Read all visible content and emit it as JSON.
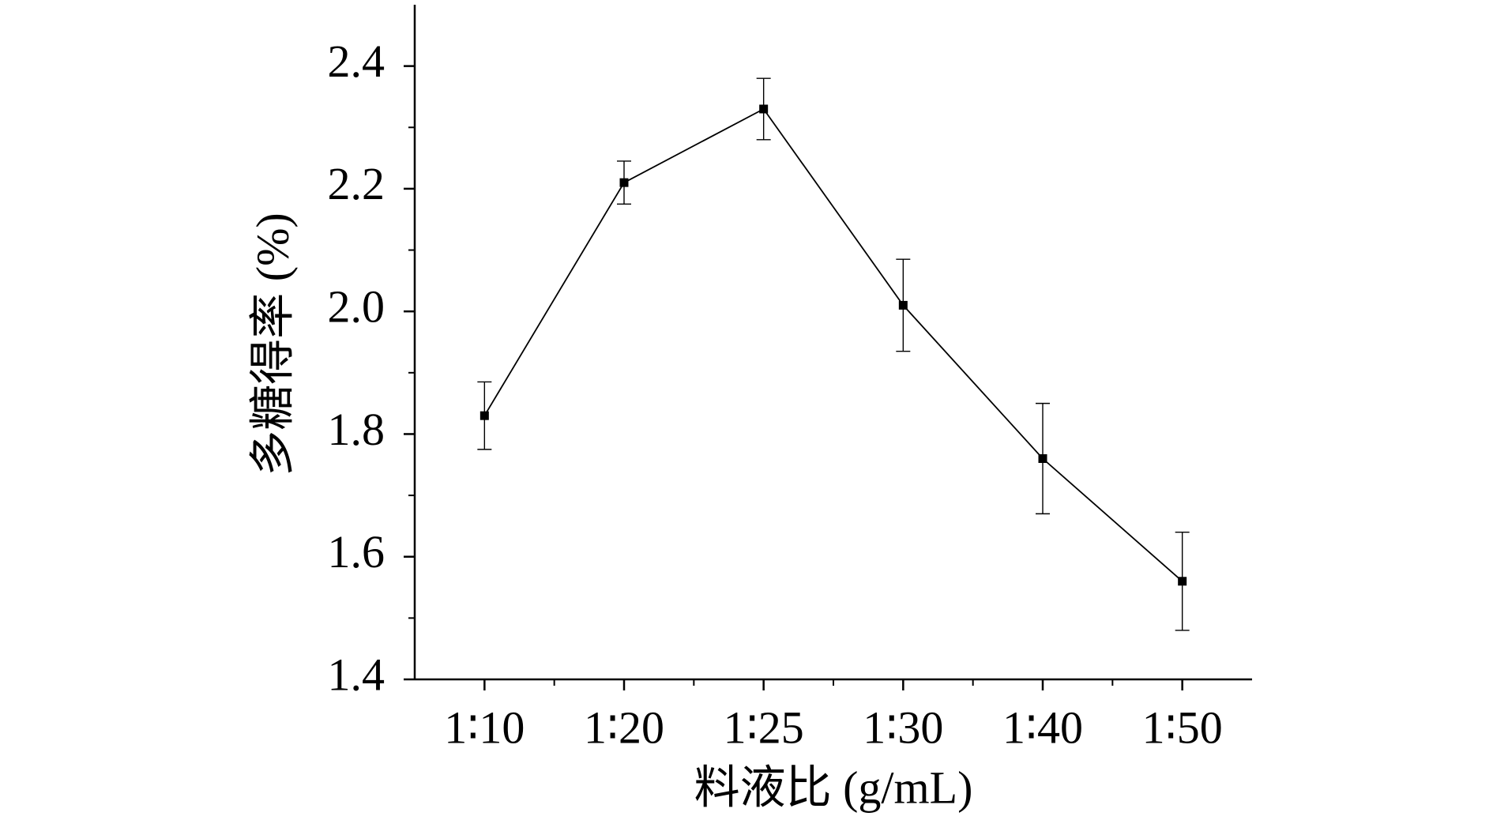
{
  "chart_data": {
    "type": "line",
    "xlabel": "料液比 (g/mL)",
    "ylabel": "多糖得率 (%)",
    "categories": [
      "1∶10",
      "1∶20",
      "1∶25",
      "1∶30",
      "1∶40",
      "1∶50"
    ],
    "series": [
      {
        "color": "#000000",
        "values": [
          1.83,
          2.21,
          2.33,
          2.01,
          1.76,
          1.56
        ],
        "errors": [
          0.055,
          0.035,
          0.05,
          0.075,
          0.09,
          0.08
        ]
      }
    ],
    "ylim": [
      1.4,
      2.5
    ],
    "yticks": [
      {
        "value": 1.4,
        "label": "1.4"
      },
      1.6,
      1.8,
      {
        "value": 2.0,
        "label": "2.0"
      },
      2.2,
      2.4
    ]
  }
}
